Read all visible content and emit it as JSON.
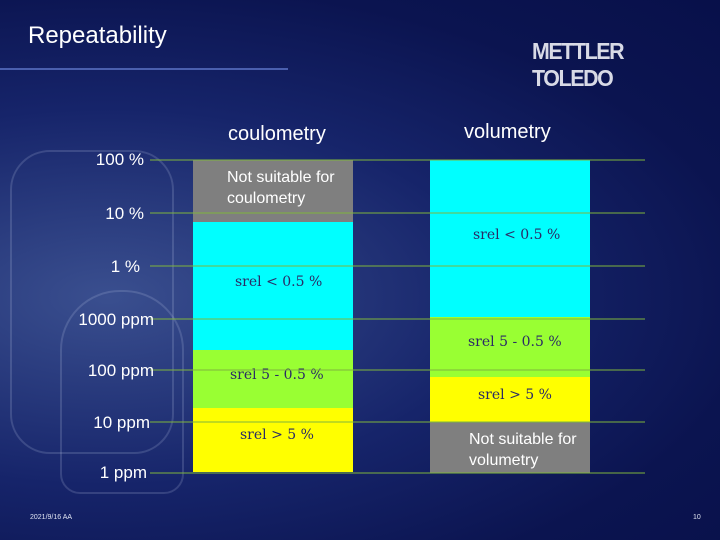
{
  "title": "Repeatability",
  "logo": "METTLER TOLEDO",
  "columns": {
    "coulometry": "coulometry",
    "volumetry": "volumetry"
  },
  "y_axis_labels": [
    "100 %",
    "10 %",
    "1 %",
    "1000 ppm",
    "100 ppm",
    "10 ppm",
    "1 ppm"
  ],
  "coulometry_blocks": {
    "not_suitable": "Not suitable for coulometry",
    "cyan": "srel < 0.5 %",
    "green": "srel 5 - 0.5 %",
    "yellow": "srel > 5 %"
  },
  "volumetry_blocks": {
    "cyan": "srel < 0.5 %",
    "green": "srel 5 - 0.5 %",
    "yellow": "srel > 5 %",
    "not_suitable": "Not suitable for volumetry"
  },
  "colors": {
    "cyan": "#00ffff",
    "green": "#99ff33",
    "yellow": "#ffff00",
    "gray": "#7f7f7f"
  },
  "footer": {
    "date": "2021/9/16 AA",
    "page": "10"
  }
}
